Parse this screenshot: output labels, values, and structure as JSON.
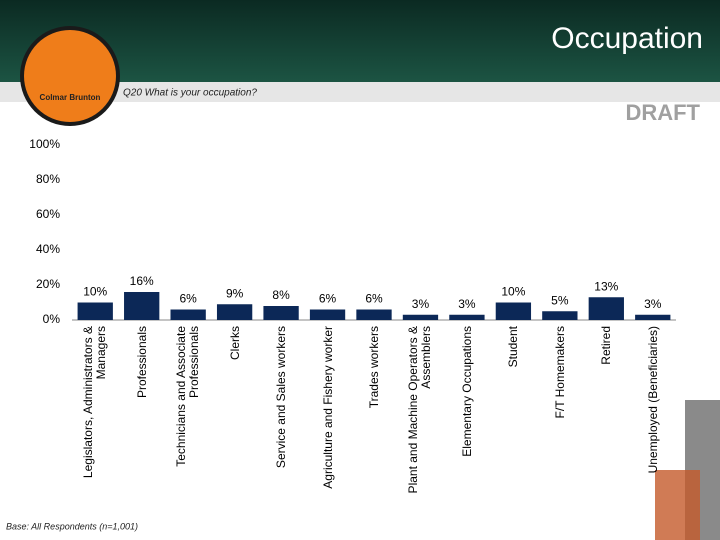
{
  "logo_text": "Colmar Brunton",
  "chart_data": {
    "type": "bar",
    "title": "Occupation",
    "subtitle": "Q20  What is your occupation?",
    "watermark": "DRAFT",
    "footnote": "Base: All Respondents (n=1,001)",
    "categories": [
      "Legislators, Administrators & Managers",
      "Professionals",
      "Technicians and Associate Professionals",
      "Clerks",
      "Service and Sales workers",
      "Agriculture and Fishery worker",
      "Trades workers",
      "Plant and Machine Operators & Assemblers",
      "Elementary Occupations",
      "Student",
      "F/T Homemakers",
      "Retired",
      "Unemployed (Beneficiaries)"
    ],
    "values": [
      10,
      16,
      6,
      9,
      8,
      6,
      6,
      3,
      3,
      10,
      5,
      13,
      3
    ],
    "value_labels": [
      "10%",
      "16%",
      "6%",
      "9%",
      "8%",
      "6%",
      "6%",
      "3%",
      "3%",
      "10%",
      "5%",
      "13%",
      "3%"
    ],
    "color": "#0c2857",
    "ylim": [
      0,
      100
    ],
    "yticks": [
      {
        "value": 0,
        "label": "0%"
      },
      {
        "value": 20,
        "label": "20%"
      },
      {
        "value": 40,
        "label": "40%"
      },
      {
        "value": 60,
        "label": "60%"
      },
      {
        "value": 80,
        "label": "80%"
      },
      {
        "value": 100,
        "label": "100%"
      }
    ],
    "grid": false
  }
}
